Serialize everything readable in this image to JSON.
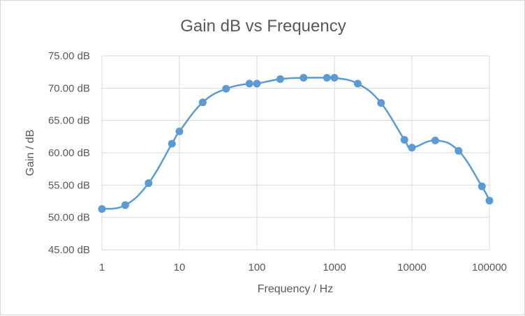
{
  "chart_data": {
    "type": "scatter",
    "title": "Gain dB vs Frequency",
    "xlabel": "Frequency / Hz",
    "ylabel": "Gain / dB",
    "x_scale": "log",
    "xlim": [
      1,
      100000
    ],
    "ylim": [
      45,
      75
    ],
    "x_ticks": [
      "1",
      "10",
      "100",
      "1000",
      "10000",
      "100000"
    ],
    "y_ticks": [
      "45.00 dB",
      "50.00 dB",
      "55.00 dB",
      "60.00 dB",
      "65.00 dB",
      "70.00 dB",
      "75.00 dB"
    ],
    "grid": true,
    "smooth_line": true,
    "colors": {
      "series": "#5b9bd5",
      "grid": "#d9d9d9",
      "text": "#595959"
    },
    "series": [
      {
        "x": [
          1,
          2,
          4,
          8,
          10,
          20,
          40,
          80,
          100,
          200,
          400,
          800,
          1000,
          2000,
          4000,
          8000,
          10000,
          20000,
          40000,
          80000,
          100000
        ],
        "y": [
          51.3,
          51.9,
          55.3,
          61.4,
          63.3,
          67.8,
          69.9,
          70.7,
          70.7,
          71.4,
          71.6,
          71.6,
          71.6,
          70.7,
          67.7,
          62.0,
          60.8,
          61.9,
          60.3,
          54.8,
          52.6
        ]
      }
    ]
  }
}
